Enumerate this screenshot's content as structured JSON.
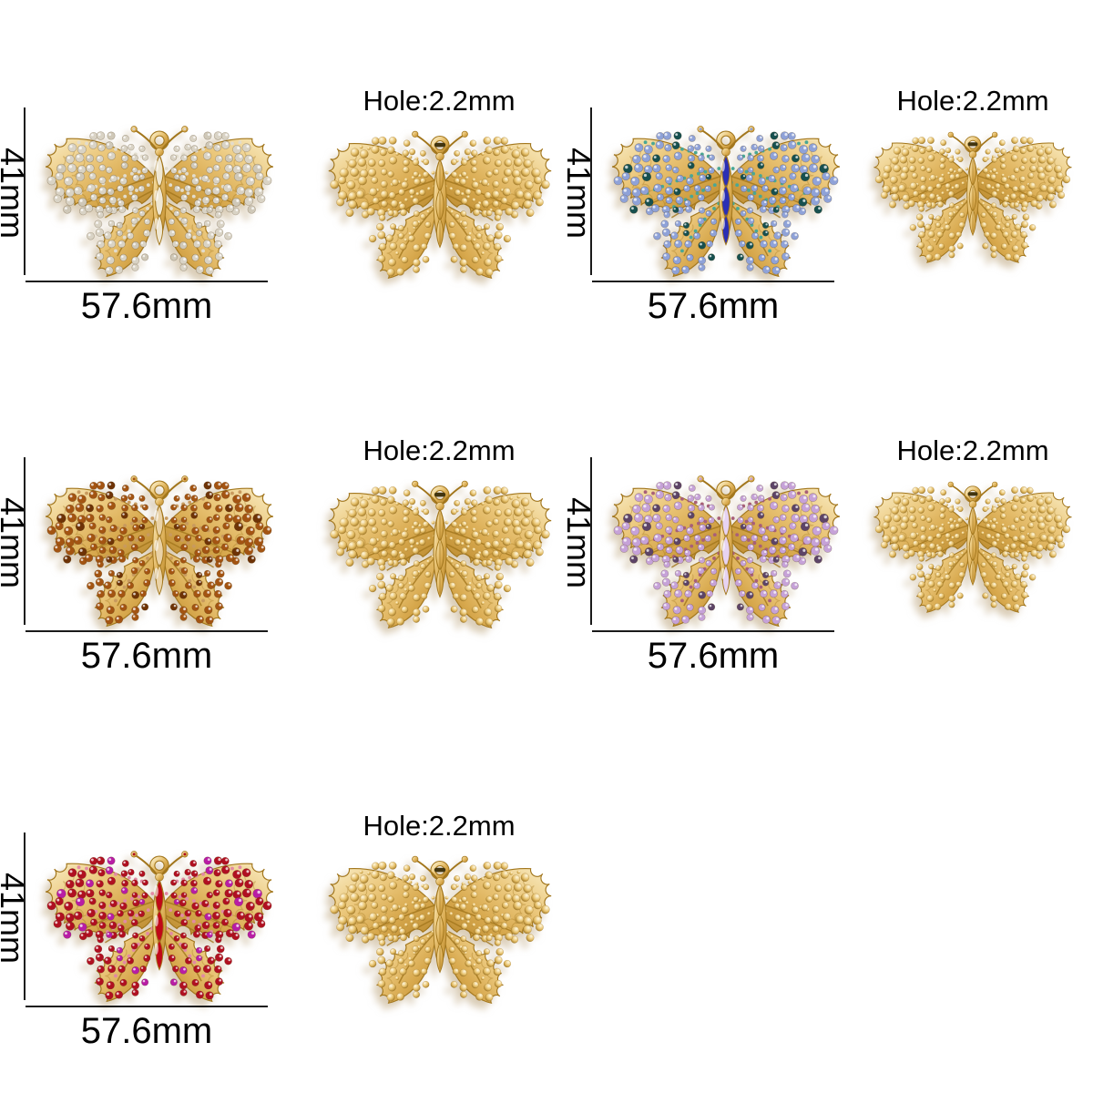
{
  "page": {
    "background": "#ffffff",
    "description_labels_font_color": "#000000"
  },
  "labels": {
    "height": "41mm",
    "width": "57.6mm",
    "hole": "Hole:2.2mm"
  },
  "palette": {
    "gold_light": "#f9edc6",
    "gold_mid": "#d9aa50",
    "gold_dark": "#a2761c",
    "bead_light": "#fff8e0",
    "bead_dark": "#99701d",
    "dimension_line": "#1a1a1a",
    "shadow": "rgba(190,165,125,0.55)"
  },
  "variants": {
    "clear": {
      "name": "clear crystal",
      "stone": "#d9d3c5",
      "accent": "#cfc8b8",
      "trim": "#e2dccd",
      "body": "#efe7d3"
    },
    "blue": {
      "name": "blue crystal",
      "stone": "#8fa2d8",
      "accent": "#17504f",
      "trim": "#49a795",
      "body": "#2b2fb4"
    },
    "amber": {
      "name": "amber crystal",
      "stone": "#a35412",
      "accent": "#6e3306",
      "trim": "#c89a5e",
      "body": "#ead2a6"
    },
    "purple": {
      "name": "purple crystal",
      "stone": "#c6a2d8",
      "accent": "#5d4467",
      "trim": "#a85f78",
      "body": "#e7d3f2"
    },
    "red": {
      "name": "red crystal",
      "stone": "#b01021",
      "accent": "#b81da5",
      "trim": "#e289a4",
      "body": "#c00818"
    }
  },
  "items": [
    {
      "kind": "front",
      "variant": "clear",
      "row": 1,
      "col": 1
    },
    {
      "kind": "back",
      "variant": "gold",
      "row": 1,
      "col": 2
    },
    {
      "kind": "front",
      "variant": "blue",
      "row": 1,
      "col": 3
    },
    {
      "kind": "back",
      "variant": "gold",
      "row": 1,
      "col": 4
    },
    {
      "kind": "front",
      "variant": "amber",
      "row": 2,
      "col": 1
    },
    {
      "kind": "back",
      "variant": "gold",
      "row": 2,
      "col": 2
    },
    {
      "kind": "front",
      "variant": "purple",
      "row": 2,
      "col": 3
    },
    {
      "kind": "back",
      "variant": "gold",
      "row": 2,
      "col": 4
    },
    {
      "kind": "front",
      "variant": "red",
      "row": 3,
      "col": 1
    },
    {
      "kind": "back",
      "variant": "gold",
      "row": 3,
      "col": 2
    }
  ]
}
